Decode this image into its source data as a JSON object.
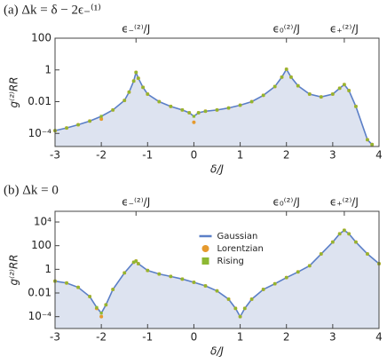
{
  "chart_data": [
    {
      "type": "line",
      "title": "(a) Δk = δ − 2ϵ₋⁽¹⁾",
      "x_label": "δ/J",
      "y_label": "g⁽²⁾RR",
      "yscale": "log",
      "grid": false,
      "xlim": [
        -3,
        4
      ],
      "xticks": [
        -3,
        -2,
        -1,
        0,
        1,
        2,
        3,
        4
      ],
      "ylim": [
        1.5e-05,
        100
      ],
      "yticks": [
        {
          "value": 0.0001,
          "label": "10⁻⁴"
        },
        0.01,
        1,
        100
      ],
      "top_ticks": [
        {
          "value": -1.25,
          "label": "ϵ₋⁽²⁾/J"
        },
        {
          "value": 2,
          "label": "ϵ₀⁽²⁾/J"
        },
        {
          "value": 3.25,
          "label": "ϵ₊⁽²⁾/J"
        }
      ],
      "x": [
        -3,
        -2.75,
        -2.5,
        -2.25,
        -2,
        -1.75,
        -1.5,
        -1.4,
        -1.3,
        -1.25,
        -1.2,
        -1.1,
        -1,
        -0.75,
        -0.5,
        -0.25,
        -0.1,
        0,
        0.1,
        0.25,
        0.5,
        0.75,
        1,
        1.25,
        1.5,
        1.75,
        1.9,
        2,
        2.1,
        2.25,
        2.5,
        2.75,
        3,
        3.15,
        3.25,
        3.35,
        3.5,
        3.75,
        3.85
      ],
      "series": [
        {
          "name": "Gaussian",
          "color": "#5b7fc7",
          "fill": "#dde3f0",
          "values": [
            0.00015,
            0.00022,
            0.00035,
            0.0006,
            0.0012,
            0.003,
            0.012,
            0.04,
            0.2,
            0.7,
            0.3,
            0.08,
            0.03,
            0.01,
            0.005,
            0.003,
            0.002,
            0.0012,
            0.002,
            0.0025,
            0.003,
            0.004,
            0.006,
            0.01,
            0.025,
            0.09,
            0.35,
            1.1,
            0.35,
            0.1,
            0.03,
            0.02,
            0.03,
            0.07,
            0.12,
            0.05,
            0.005,
            4e-05,
            2e-05
          ]
        },
        {
          "name": "Lorentzian",
          "color": "#e69a2e",
          "values": [
            0.00015,
            0.00022,
            0.00035,
            0.0006,
            0.0008,
            0.003,
            0.012,
            0.04,
            0.2,
            0.7,
            0.3,
            0.08,
            0.03,
            0.01,
            0.005,
            0.003,
            0.002,
            0.0005,
            0.002,
            0.0025,
            0.003,
            0.004,
            0.006,
            0.01,
            0.025,
            0.09,
            0.35,
            1.1,
            0.35,
            0.1,
            0.03,
            0.02,
            0.03,
            0.07,
            0.12,
            0.05,
            0.005,
            4e-05,
            2e-05
          ]
        },
        {
          "name": "Rising",
          "color": "#8db832",
          "values": [
            0.00015,
            0.00022,
            0.00035,
            0.0006,
            0.0012,
            0.003,
            0.012,
            0.04,
            0.2,
            0.7,
            0.3,
            0.08,
            0.03,
            0.01,
            0.005,
            0.003,
            0.002,
            0.0012,
            0.002,
            0.0025,
            0.003,
            0.004,
            0.006,
            0.01,
            0.025,
            0.09,
            0.35,
            1.1,
            0.35,
            0.1,
            0.03,
            0.02,
            0.03,
            0.07,
            0.12,
            0.05,
            0.005,
            4e-05,
            2e-05
          ]
        }
      ]
    },
    {
      "type": "line",
      "title": "(b) Δk = 0",
      "x_label": "δ/J",
      "y_label": "g⁽²⁾RR",
      "yscale": "log",
      "grid": false,
      "legend": "upper center",
      "xlim": [
        -3,
        4
      ],
      "xticks": [
        -3,
        -2,
        -1,
        0,
        1,
        2,
        3,
        4
      ],
      "ylim": [
        1e-05,
        80000
      ],
      "yticks": [
        {
          "value": 0.0001,
          "label": "10⁻⁴"
        },
        0.01,
        1,
        100,
        {
          "value": 10000,
          "label": "10⁴"
        }
      ],
      "top_ticks": [
        {
          "value": -1.25,
          "label": "ϵ₋⁽²⁾/J"
        },
        {
          "value": 2,
          "label": "ϵ₀⁽²⁾/J"
        },
        {
          "value": 3.25,
          "label": "ϵ₊⁽²⁾/J"
        }
      ],
      "x": [
        -3,
        -2.75,
        -2.5,
        -2.25,
        -2.1,
        -2,
        -1.9,
        -1.75,
        -1.5,
        -1.3,
        -1.25,
        -1.2,
        -1,
        -0.75,
        -0.5,
        -0.25,
        0,
        0.25,
        0.5,
        0.75,
        0.9,
        1,
        1.1,
        1.25,
        1.5,
        1.75,
        2,
        2.25,
        2.5,
        2.75,
        3,
        3.15,
        3.25,
        3.35,
        3.5,
        3.75,
        4
      ],
      "series": [
        {
          "name": "Gaussian",
          "color": "#5b7fc7",
          "fill": "#dde3f0",
          "values": [
            0.1,
            0.07,
            0.03,
            0.005,
            0.0006,
            0.0002,
            0.001,
            0.02,
            0.5,
            4,
            5,
            3,
            0.8,
            0.4,
            0.25,
            0.15,
            0.08,
            0.04,
            0.015,
            0.003,
            0.0005,
            0.0001,
            0.0005,
            0.003,
            0.02,
            0.06,
            0.2,
            0.6,
            2,
            20,
            200,
            1000,
            2000,
            1000,
            200,
            20,
            3
          ]
        },
        {
          "name": "Lorentzian",
          "color": "#e69a2e",
          "values": [
            0.1,
            0.07,
            0.03,
            0.005,
            0.0005,
            0.0001,
            0.001,
            0.02,
            0.5,
            4,
            5,
            3,
            0.8,
            0.4,
            0.25,
            0.15,
            0.08,
            0.04,
            0.015,
            0.003,
            0.0005,
            0.0001,
            0.0005,
            0.003,
            0.02,
            0.06,
            0.2,
            0.6,
            2,
            20,
            200,
            1000,
            2000,
            1000,
            200,
            20,
            3
          ]
        },
        {
          "name": "Rising",
          "color": "#8db832",
          "values": [
            0.1,
            0.07,
            0.03,
            0.005,
            0.0006,
            0.0002,
            0.001,
            0.02,
            0.5,
            4,
            5,
            3,
            0.8,
            0.4,
            0.25,
            0.15,
            0.08,
            0.04,
            0.015,
            0.003,
            0.0005,
            0.0001,
            0.0005,
            0.003,
            0.02,
            0.06,
            0.2,
            0.6,
            2,
            20,
            200,
            1000,
            2000,
            1000,
            200,
            20,
            3
          ]
        }
      ]
    }
  ]
}
